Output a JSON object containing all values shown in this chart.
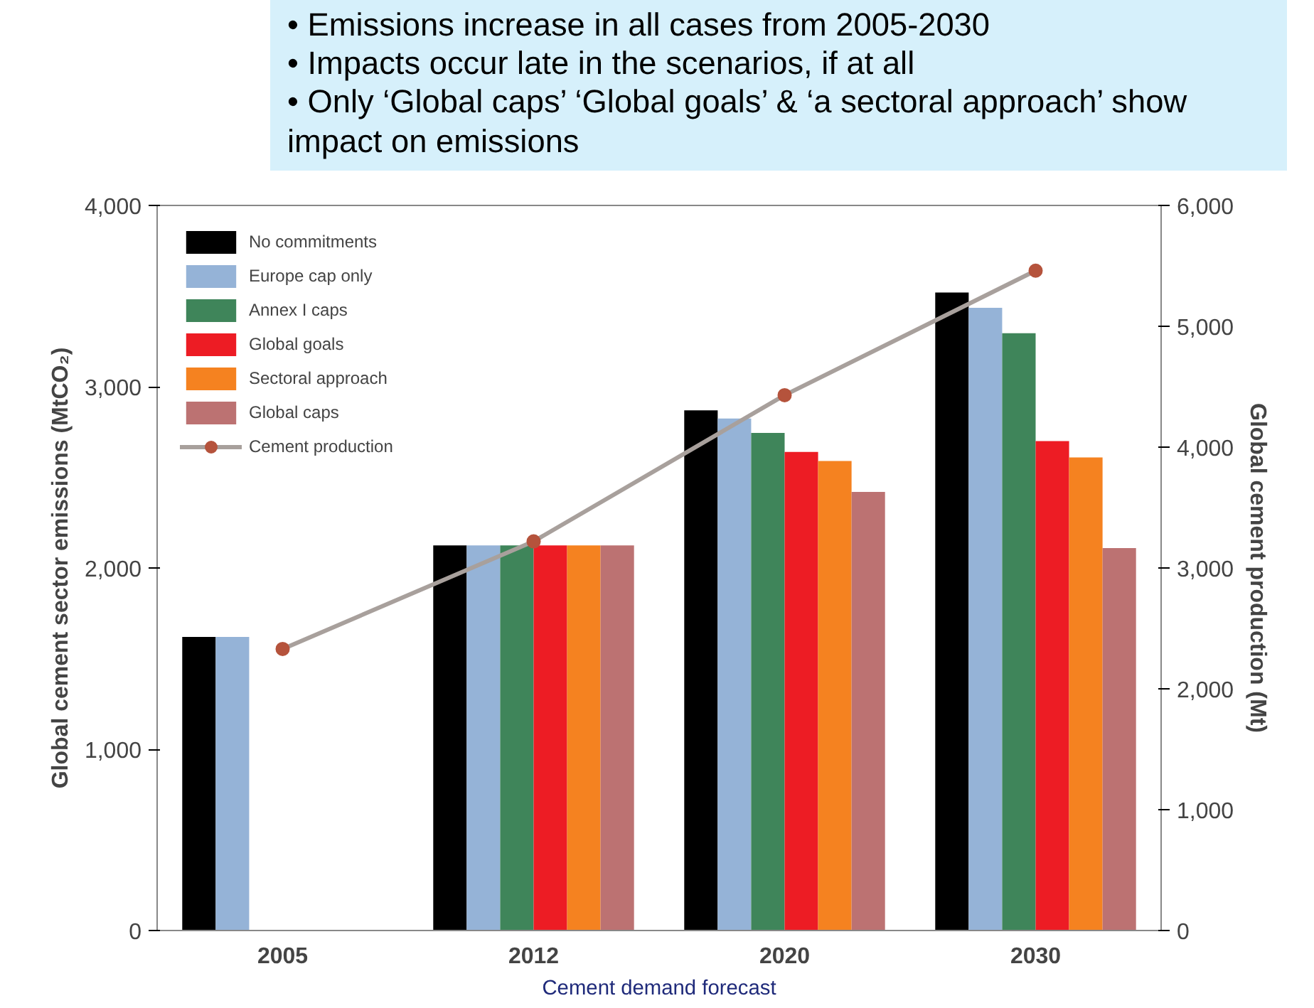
{
  "chart_data": {
    "type": "bar",
    "title": "• Emissions increase in all cases from 2005-2030\n• Impacts occur late in the scenarios, if at all\n• Only ‘Global caps’ ‘Global goals’ & ‘a sectoral approach’ show impact on emissions",
    "categories": [
      "2005",
      "2012",
      "2020",
      "2030"
    ],
    "ylabel": "Global cement sector emissions (MtCO₂)",
    "y2label": "Global cement production (Mt)",
    "ylim": [
      0,
      4000
    ],
    "yticks": [
      {
        "value": 0,
        "label": "0"
      },
      {
        "value": 1000,
        "label": "1,000"
      },
      {
        "value": 2000,
        "label": "2,000"
      },
      {
        "value": 3000,
        "label": "3,000"
      },
      {
        "value": 4000,
        "label": "4,000"
      }
    ],
    "y2lim": [
      0,
      6000
    ],
    "y2ticks": [
      {
        "value": 0,
        "label": "0"
      },
      {
        "value": 1000,
        "label": "1,000"
      },
      {
        "value": 2000,
        "label": "2,000"
      },
      {
        "value": 3000,
        "label": "3,000"
      },
      {
        "value": 4000,
        "label": "4,000"
      },
      {
        "value": 5000,
        "label": "5,000"
      },
      {
        "value": 6000,
        "label": "6,000"
      }
    ],
    "series": [
      {
        "name": "No commitments",
        "color": "#000000",
        "values": [
          1620,
          2125,
          2870,
          3520
        ]
      },
      {
        "name": "Europe cap only",
        "color": "#95b3d7",
        "values": [
          1620,
          2125,
          2825,
          3435
        ]
      },
      {
        "name": "Annex I caps",
        "color": "#3f855a",
        "values": [
          null,
          2125,
          2745,
          3295
        ]
      },
      {
        "name": "Global goals",
        "color": "#ed1c24",
        "values": [
          null,
          2125,
          2640,
          2700
        ]
      },
      {
        "name": "Sectoral approach",
        "color": "#f58220",
        "values": [
          null,
          2125,
          2590,
          2610
        ]
      },
      {
        "name": "Global caps",
        "color": "#bc7272",
        "values": [
          null,
          2125,
          2420,
          2110
        ]
      },
      {
        "name": "Cement production",
        "type": "line",
        "axis": "y2",
        "color": "#a8a09c",
        "marker": "circle",
        "values": [
          2330,
          3220,
          4430,
          5460
        ]
      }
    ],
    "legend": "top left",
    "grid": false,
    "annotations": [
      "Cement demand forecast"
    ]
  }
}
